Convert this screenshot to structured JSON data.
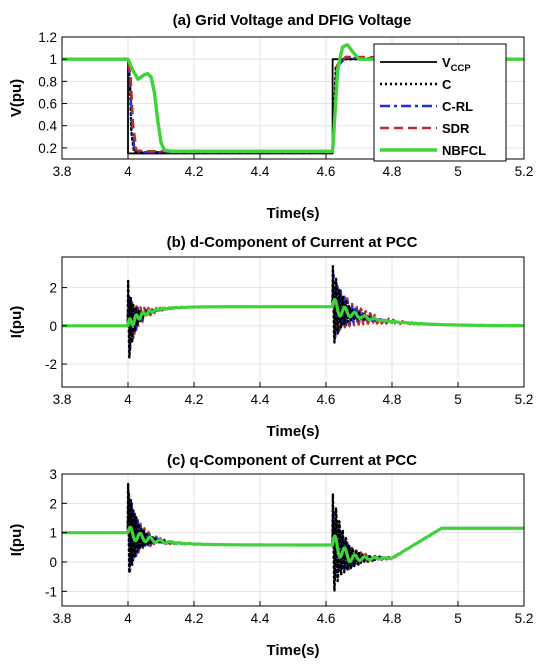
{
  "chart_data": [
    {
      "type": "line",
      "title": "(a) Grid Voltage and DFIG Voltage",
      "xlabel": "Time(s)",
      "ylabel": "V(pu)",
      "xlim": [
        3.8,
        5.2
      ],
      "ylim": [
        0.1,
        1.2
      ],
      "xticks": [
        "3.8",
        "4",
        "4.2",
        "4.4",
        "4.6",
        "4.8",
        "5",
        "5.2"
      ],
      "yticks": [
        "0.2",
        "0.4",
        "0.6",
        "0.8",
        "1",
        "1.2"
      ],
      "grid": true,
      "legend": {
        "placement": "top-right",
        "entries": [
          {
            "main": "V",
            "sub": "CCP"
          },
          {
            "main": "C",
            "sub": ""
          },
          {
            "main": "C-RL",
            "sub": ""
          },
          {
            "main": "SDR",
            "sub": ""
          },
          {
            "main": "NBFCL",
            "sub": ""
          }
        ]
      },
      "series": [
        {
          "color": "#000000",
          "dash": "solid",
          "width": 1.8,
          "points": [
            [
              3.8,
              1.0
            ],
            [
              4.0,
              1.0
            ],
            [
              4.0,
              0.15
            ],
            [
              4.62,
              0.15
            ],
            [
              4.62,
              1.0
            ],
            [
              5.2,
              1.0
            ]
          ]
        },
        {
          "color": "#000000",
          "dash": "dotted",
          "width": 2.4,
          "points": [
            [
              3.8,
              1.0
            ],
            [
              4.0,
              1.0
            ],
            [
              4.006,
              0.8
            ],
            [
              4.01,
              0.35
            ],
            [
              4.018,
              0.17
            ],
            [
              4.03,
              0.16
            ],
            [
              4.62,
              0.16
            ],
            [
              4.63,
              0.93
            ],
            [
              4.65,
              1.0
            ],
            [
              5.2,
              1.0
            ]
          ]
        },
        {
          "color": "#1f2fd6",
          "dash": "dashdot",
          "width": 2.4,
          "points": [
            [
              3.8,
              1.0
            ],
            [
              4.0,
              1.0
            ],
            [
              4.006,
              0.82
            ],
            [
              4.012,
              0.4
            ],
            [
              4.02,
              0.17
            ],
            [
              4.04,
              0.16
            ],
            [
              4.62,
              0.16
            ],
            [
              4.635,
              0.94
            ],
            [
              4.66,
              1.01
            ],
            [
              5.2,
              1.0
            ]
          ]
        },
        {
          "color": "#b5302a",
          "dash": "dashed",
          "width": 2.6,
          "points": [
            [
              3.8,
              1.0
            ],
            [
              4.0,
              1.0
            ],
            [
              4.008,
              0.83
            ],
            [
              4.015,
              0.42
            ],
            [
              4.025,
              0.18
            ],
            [
              4.05,
              0.17
            ],
            [
              4.62,
              0.17
            ],
            [
              4.635,
              0.95
            ],
            [
              4.66,
              1.02
            ],
            [
              5.2,
              1.0
            ]
          ]
        },
        {
          "color": "#3fd33a",
          "dash": "solid",
          "width": 3.4,
          "points": [
            [
              3.8,
              1.0
            ],
            [
              4.0,
              1.0
            ],
            [
              4.015,
              0.9
            ],
            [
              4.03,
              0.82
            ],
            [
              4.05,
              0.86
            ],
            [
              4.06,
              0.87
            ],
            [
              4.07,
              0.84
            ],
            [
              4.08,
              0.7
            ],
            [
              4.09,
              0.45
            ],
            [
              4.1,
              0.25
            ],
            [
              4.11,
              0.18
            ],
            [
              4.13,
              0.17
            ],
            [
              4.62,
              0.17
            ],
            [
              4.625,
              0.4
            ],
            [
              4.635,
              0.9
            ],
            [
              4.65,
              1.11
            ],
            [
              4.665,
              1.13
            ],
            [
              4.68,
              1.07
            ],
            [
              4.7,
              1.0
            ],
            [
              5.2,
              1.0
            ]
          ]
        }
      ]
    },
    {
      "type": "line",
      "title": "(b) d-Component of Current at PCC",
      "xlabel": "Time(s)",
      "ylabel": "I(pu)",
      "xlim": [
        3.8,
        5.2
      ],
      "ylim": [
        -3.2,
        3.6
      ],
      "xticks": [
        "3.8",
        "4",
        "4.2",
        "4.4",
        "4.6",
        "4.8",
        "5",
        "5.2"
      ],
      "yticks": [
        "-2",
        "0",
        "2"
      ],
      "grid": true,
      "series": [
        {
          "color": "#b5302a",
          "dash": "dashed",
          "width": 2.4,
          "osc": {
            "a1": 1.3,
            "a2": 1.4,
            "d1": 0.035,
            "d2": 0.07,
            "p1": 0.012,
            "p2": 0.014,
            "ph": 0.6,
            "base": "d"
          }
        },
        {
          "color": "#1f2fd6",
          "dash": "dashdot",
          "width": 2.4,
          "osc": {
            "a1": 1.9,
            "a2": 1.9,
            "d1": 0.022,
            "d2": 0.04,
            "p1": 0.009,
            "p2": 0.011,
            "ph": 0.0,
            "base": "d"
          }
        },
        {
          "color": "#000000",
          "dash": "dotted",
          "width": 2.4,
          "osc": {
            "a1": 2.4,
            "a2": 2.2,
            "d1": 0.016,
            "d2": 0.03,
            "p1": 0.008,
            "p2": 0.01,
            "ph": 1.2,
            "base": "d"
          }
        },
        {
          "color": "#3fd33a",
          "dash": "solid",
          "width": 3.2,
          "osc": {
            "a1": 0.3,
            "a2": 0.5,
            "d1": 0.05,
            "d2": 0.05,
            "p1": 0.02,
            "p2": 0.03,
            "ph": 0.0,
            "base": "d",
            "smooth": 1
          }
        }
      ]
    },
    {
      "type": "line",
      "title": "(c) q-Component of Current at PCC",
      "xlabel": "Time(s)",
      "ylabel": "I(pu)",
      "xlim": [
        3.8,
        5.2
      ],
      "ylim": [
        -1.5,
        3.0
      ],
      "xticks": [
        "3.8",
        "4",
        "4.2",
        "4.4",
        "4.6",
        "4.8",
        "5",
        "5.2"
      ],
      "yticks": [
        "-1",
        "0",
        "1",
        "2",
        "3"
      ],
      "grid": true,
      "series": [
        {
          "color": "#b5302a",
          "dash": "dashed",
          "width": 2.4,
          "osc": {
            "a1": 1.2,
            "a2": 1.1,
            "d1": 0.04,
            "d2": 0.05,
            "p1": 0.012,
            "p2": 0.014,
            "ph": 0.6,
            "base": "q"
          }
        },
        {
          "color": "#1f2fd6",
          "dash": "dashdot",
          "width": 2.4,
          "osc": {
            "a1": 1.6,
            "a2": 1.3,
            "d1": 0.03,
            "d2": 0.04,
            "p1": 0.009,
            "p2": 0.011,
            "ph": 0.0,
            "base": "q"
          }
        },
        {
          "color": "#000000",
          "dash": "dotted",
          "width": 2.4,
          "osc": {
            "a1": 1.7,
            "a2": 1.8,
            "d1": 0.025,
            "d2": 0.035,
            "p1": 0.008,
            "p2": 0.01,
            "ph": 1.2,
            "base": "q"
          }
        },
        {
          "color": "#3fd33a",
          "dash": "solid",
          "width": 3.2,
          "osc": {
            "a1": 0.25,
            "a2": 0.4,
            "d1": 0.06,
            "d2": 0.05,
            "p1": 0.03,
            "p2": 0.03,
            "ph": 0.0,
            "base": "q",
            "smooth": 1
          }
        }
      ]
    }
  ]
}
